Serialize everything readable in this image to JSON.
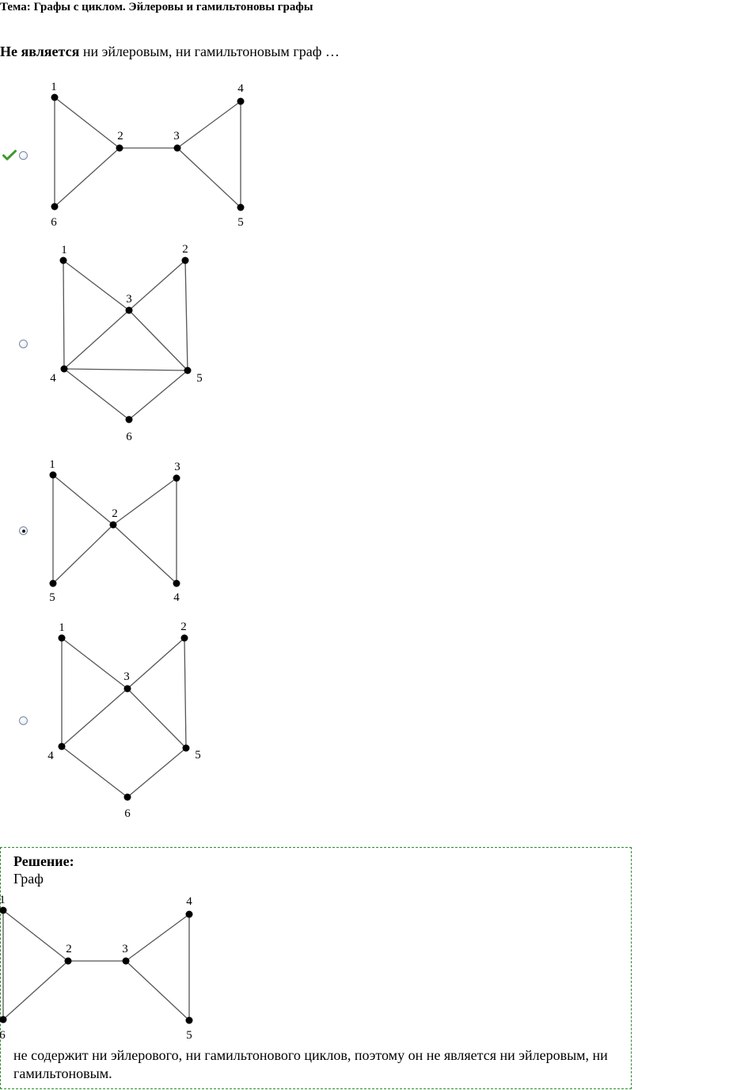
{
  "topic": "Тема: Графы с циклом. Эйлеровы и гамильтоновы графы",
  "question": {
    "bold_part": "Не является",
    "rest": " ни эйлеровым, ни гамильтоновым граф …"
  },
  "options": [
    {
      "id": "A",
      "correct": true,
      "selected": false,
      "vertices": [
        {
          "label": "1"
        },
        {
          "label": "2"
        },
        {
          "label": "3"
        },
        {
          "label": "4"
        },
        {
          "label": "5"
        },
        {
          "label": "6"
        }
      ],
      "edges": [
        [
          "1",
          "2"
        ],
        [
          "1",
          "6"
        ],
        [
          "2",
          "6"
        ],
        [
          "2",
          "3"
        ],
        [
          "3",
          "4"
        ],
        [
          "3",
          "5"
        ],
        [
          "4",
          "5"
        ]
      ]
    },
    {
      "id": "B",
      "correct": false,
      "selected": false,
      "vertices": [
        {
          "label": "1"
        },
        {
          "label": "2"
        },
        {
          "label": "3"
        },
        {
          "label": "4"
        },
        {
          "label": "5"
        },
        {
          "label": "6"
        }
      ],
      "edges": [
        [
          "1",
          "3"
        ],
        [
          "1",
          "4"
        ],
        [
          "2",
          "3"
        ],
        [
          "2",
          "5"
        ],
        [
          "3",
          "4"
        ],
        [
          "3",
          "5"
        ],
        [
          "4",
          "5"
        ],
        [
          "4",
          "6"
        ],
        [
          "5",
          "6"
        ]
      ]
    },
    {
      "id": "C",
      "correct": false,
      "selected": true,
      "vertices": [
        {
          "label": "1"
        },
        {
          "label": "2"
        },
        {
          "label": "3"
        },
        {
          "label": "4"
        },
        {
          "label": "5"
        }
      ],
      "edges": [
        [
          "1",
          "2"
        ],
        [
          "1",
          "5"
        ],
        [
          "2",
          "3"
        ],
        [
          "2",
          "4"
        ],
        [
          "2",
          "5"
        ],
        [
          "3",
          "4"
        ]
      ]
    },
    {
      "id": "D",
      "correct": false,
      "selected": false,
      "vertices": [
        {
          "label": "1"
        },
        {
          "label": "2"
        },
        {
          "label": "3"
        },
        {
          "label": "4"
        },
        {
          "label": "5"
        },
        {
          "label": "6"
        }
      ],
      "edges": [
        [
          "1",
          "3"
        ],
        [
          "1",
          "4"
        ],
        [
          "2",
          "3"
        ],
        [
          "2",
          "5"
        ],
        [
          "3",
          "4"
        ],
        [
          "3",
          "5"
        ],
        [
          "4",
          "6"
        ],
        [
          "5",
          "6"
        ]
      ]
    }
  ],
  "solution": {
    "title": "Решение:",
    "graph_word": "Граф",
    "text": "не содержит ни эйлерового, ни гамильтонового циклов, поэтому он не является ни эйлеровым, ни гамильтоновым."
  },
  "colors": {
    "check_mark": "#3f9a2c",
    "solution_border": "#2e8b2e",
    "edge": "#555555",
    "vertex": "#000000"
  }
}
